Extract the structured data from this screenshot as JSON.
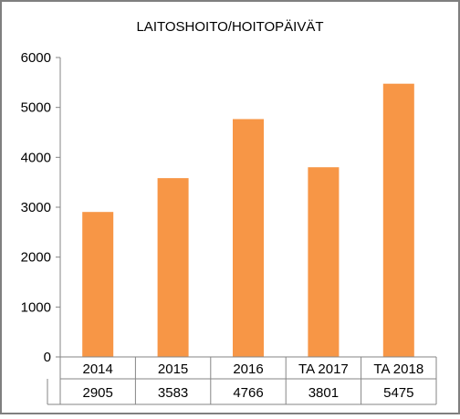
{
  "chart_data": {
    "type": "bar",
    "title": "LAITOSHOITO/HOITOPÄIVÄT",
    "categories": [
      "2014",
      "2015",
      "2016",
      "TA 2017",
      "TA 2018"
    ],
    "values": [
      2905,
      3583,
      4766,
      3801,
      5475
    ],
    "table_values": [
      "2905",
      "3583",
      "4766",
      "3801",
      "5475"
    ],
    "ylim": [
      0,
      6000
    ],
    "yticks": [
      "0",
      "1000",
      "2000",
      "3000",
      "4000",
      "5000",
      "6000"
    ],
    "grid": false,
    "legend": "none",
    "data_table": true,
    "bar_color": "#F79646",
    "border_color": "#7F7F7F",
    "axis_color": "#868686"
  }
}
